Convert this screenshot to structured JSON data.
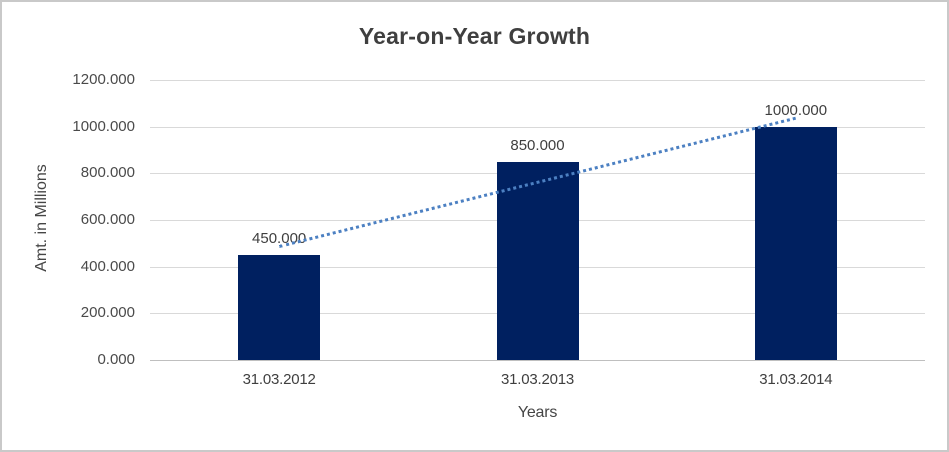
{
  "chart_data": {
    "type": "bar",
    "title": "Year-on-Year Growth",
    "xlabel": "Years",
    "ylabel": "Amt. in Millions",
    "categories": [
      "31.03.2012",
      "31.03.2013",
      "31.03.2014"
    ],
    "values": [
      450,
      850,
      1000
    ],
    "value_labels": [
      "450.000",
      "850.000",
      "1000.000"
    ],
    "y_tick_labels": [
      "0.000",
      "200.000",
      "400.000",
      "600.000",
      "800.000",
      "1000.000",
      "1200.000"
    ],
    "ylim": [
      0,
      1200
    ],
    "grid": true,
    "legend": "none",
    "bar_color": "#002060",
    "gridline_color": "#d9d9d9",
    "trendline": {
      "fit": "linear",
      "style": "dotted",
      "color": "#4c80c2"
    }
  }
}
